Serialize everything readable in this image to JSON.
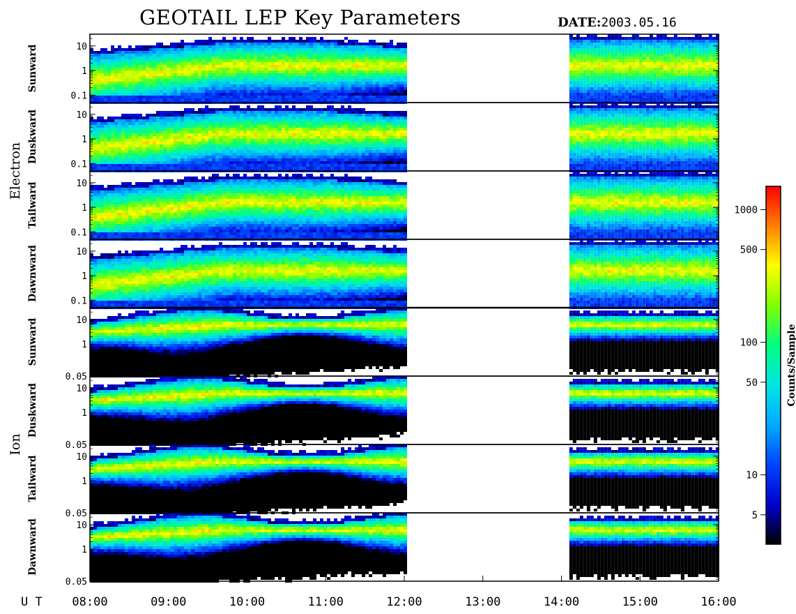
{
  "header": {
    "title": "GEOTAIL LEP Key Parameters",
    "date_label": "DATE:",
    "date_value": "2003.05.16"
  },
  "chart_data": {
    "type": "heatmap",
    "time_axis": {
      "label": "U T",
      "ticks": [
        "08:00",
        "09:00",
        "10:00",
        "11:00",
        "12:00",
        "13:00",
        "14:00",
        "15:00",
        "16:00"
      ],
      "range_hours": [
        8,
        16
      ]
    },
    "data_segments_hours": [
      [
        8.0,
        12.0
      ],
      [
        14.1,
        16.0
      ]
    ],
    "groups": [
      {
        "species": "Electron",
        "y_log_range": [
          0.05,
          30
        ],
        "y_ticks": [
          "10",
          "1",
          "0.1"
        ],
        "panels": [
          {
            "direction": "Sunward"
          },
          {
            "direction": "Duskward"
          },
          {
            "direction": "Tailward"
          },
          {
            "direction": "Dawnward"
          }
        ]
      },
      {
        "species": "Ion",
        "y_log_range": [
          0.05,
          30
        ],
        "y_ticks": [
          "10",
          "1",
          "0.05"
        ],
        "panels": [
          {
            "direction": "Sunward"
          },
          {
            "direction": "Duskward"
          },
          {
            "direction": "Tailward"
          },
          {
            "direction": "Dawnward"
          }
        ]
      }
    ],
    "colorbar": {
      "label": "Counts/Sample",
      "scale": "log",
      "range": [
        3,
        1500
      ],
      "ticks": [
        "1000",
        "500",
        "100",
        "50",
        "10",
        "5"
      ],
      "colormap": [
        "#000000",
        "#0000cc",
        "#0044ff",
        "#00aaff",
        "#00e5e5",
        "#00ff80",
        "#80ff00",
        "#ffff00",
        "#ff8000",
        "#ff0000"
      ]
    }
  }
}
